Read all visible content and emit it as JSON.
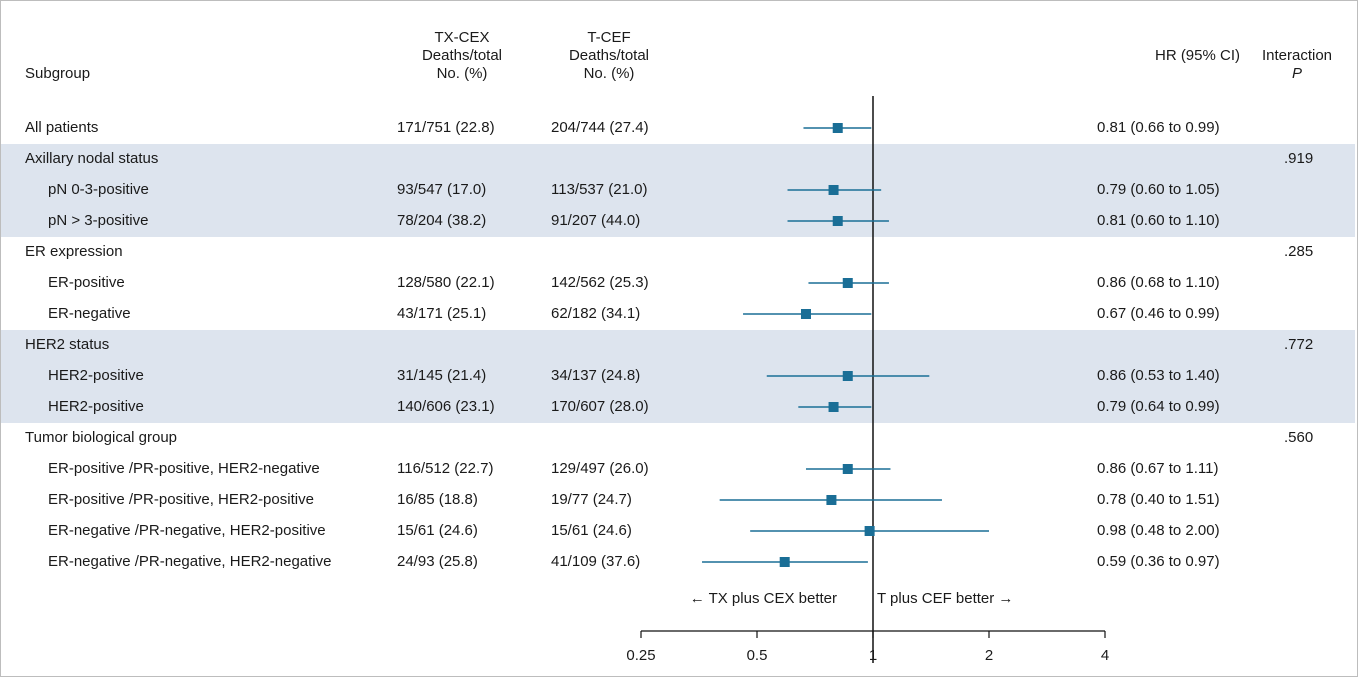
{
  "headers": {
    "subgroup": "Subgroup",
    "tx_cex": "TX-CEX\nDeaths/total\nNo. (%)",
    "t_cef": "T-CEF\nDeaths/total\nNo. (%)",
    "hr": "HR (95% CI)",
    "interaction": "Interaction",
    "p": "P"
  },
  "chart_data": {
    "type": "forest",
    "title": "",
    "xlabel": "",
    "x_scale": "log",
    "xlim": [
      0.25,
      4
    ],
    "xticks": [
      0.25,
      0.5,
      1,
      2,
      4
    ],
    "xtick_labels": [
      "0.25",
      "0.5",
      "1",
      "2",
      "4"
    ],
    "reference_line": 1,
    "direction_left": "← TX plus CEX better",
    "direction_right": "T plus CEF better →",
    "colors": {
      "marker": "#1a6e96",
      "band": "#dde4ee",
      "text": "#1a1a1a"
    },
    "rows": [
      {
        "kind": "data",
        "label": "All patients",
        "indent": false,
        "band": false,
        "tx": "171/751 (22.8)",
        "tcef": "204/744 (27.4)",
        "hr": 0.81,
        "lo": 0.66,
        "hi": 0.99,
        "hr_text": "0.81 (0.66 to 0.99)"
      },
      {
        "kind": "header",
        "label": "Axillary nodal status",
        "band": true,
        "p": ".919"
      },
      {
        "kind": "data",
        "label": "pN 0-3-positive",
        "indent": true,
        "band": true,
        "tx": "93/547 (17.0)",
        "tcef": "113/537 (21.0)",
        "hr": 0.79,
        "lo": 0.6,
        "hi": 1.05,
        "hr_text": "0.79 (0.60 to 1.05)"
      },
      {
        "kind": "data",
        "label": "pN > 3-positive",
        "indent": true,
        "band": true,
        "tx": "78/204 (38.2)",
        "tcef": "91/207 (44.0)",
        "hr": 0.81,
        "lo": 0.6,
        "hi": 1.1,
        "hr_text": "0.81 (0.60 to 1.10)"
      },
      {
        "kind": "header",
        "label": "ER expression",
        "band": false,
        "p": ".285"
      },
      {
        "kind": "data",
        "label": "ER-positive",
        "indent": true,
        "band": false,
        "tx": "128/580 (22.1)",
        "tcef": "142/562 (25.3)",
        "hr": 0.86,
        "lo": 0.68,
        "hi": 1.1,
        "hr_text": "0.86 (0.68 to 1.10)"
      },
      {
        "kind": "data",
        "label": "ER-negative",
        "indent": true,
        "band": false,
        "tx": "43/171 (25.1)",
        "tcef": "62/182 (34.1)",
        "hr": 0.67,
        "lo": 0.46,
        "hi": 0.99,
        "hr_text": "0.67 (0.46 to 0.99)"
      },
      {
        "kind": "header",
        "label": "HER2 status",
        "band": true,
        "p": ".772"
      },
      {
        "kind": "data",
        "label": "HER2-positive",
        "indent": true,
        "band": true,
        "tx": "31/145 (21.4)",
        "tcef": "34/137 (24.8)",
        "hr": 0.86,
        "lo": 0.53,
        "hi": 1.4,
        "hr_text": "0.86 (0.53 to 1.40)"
      },
      {
        "kind": "data",
        "label": "HER2-positive",
        "indent": true,
        "band": true,
        "tx": "140/606 (23.1)",
        "tcef": "170/607 (28.0)",
        "hr": 0.79,
        "lo": 0.64,
        "hi": 0.99,
        "hr_text": "0.79 (0.64 to 0.99)"
      },
      {
        "kind": "header",
        "label": "Tumor biological group",
        "band": false,
        "p": ".560"
      },
      {
        "kind": "data",
        "label": "ER-positive /PR-positive, HER2-negative",
        "indent": true,
        "band": false,
        "tx": "116/512 (22.7)",
        "tcef": "129/497 (26.0)",
        "hr": 0.86,
        "lo": 0.67,
        "hi": 1.11,
        "hr_text": "0.86 (0.67 to 1.11)"
      },
      {
        "kind": "data",
        "label": "ER-positive /PR-positive, HER2-positive",
        "indent": true,
        "band": false,
        "tx": "16/85 (18.8)",
        "tcef": "19/77 (24.7)",
        "hr": 0.78,
        "lo": 0.4,
        "hi": 1.51,
        "hr_text": "0.78 (0.40 to 1.51)"
      },
      {
        "kind": "data",
        "label": "ER-negative /PR-negative, HER2-positive",
        "indent": true,
        "band": false,
        "tx": "15/61 (24.6)",
        "tcef": "15/61 (24.6)",
        "hr": 0.98,
        "lo": 0.48,
        "hi": 2.0,
        "hr_text": "0.98 (0.48 to 2.00)"
      },
      {
        "kind": "data",
        "label": "ER-negative /PR-negative, HER2-negative",
        "indent": true,
        "band": false,
        "tx": "24/93 (25.8)",
        "tcef": "41/109 (37.6)",
        "hr": 0.59,
        "lo": 0.36,
        "hi": 0.97,
        "hr_text": "0.59 (0.36 to 0.97)"
      }
    ]
  }
}
